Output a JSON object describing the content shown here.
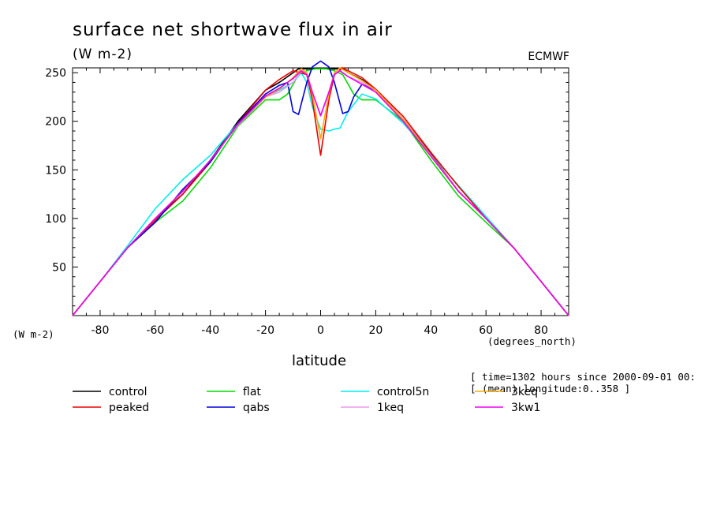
{
  "chart_data": {
    "type": "line",
    "title": "surface net shortwave flux in air",
    "units_label": "(W m-2)",
    "source_label": "ECMWF",
    "ylabel": "(W m-2)",
    "xlabel": "latitude",
    "xunits_label": "(degrees_north)",
    "xlim": [
      -90,
      90
    ],
    "ylim": [
      0,
      255
    ],
    "xticks": [
      -80,
      -60,
      -40,
      -20,
      0,
      20,
      40,
      60,
      80
    ],
    "yticks": [
      50,
      100,
      150,
      200,
      250
    ],
    "info_lines": [
      "[ time=1302 hours since 2000-09-01 00:",
      "[ (mean) longitude:0..358 ]"
    ],
    "grid": false,
    "legend_position": "bottom",
    "series": [
      {
        "name": "control",
        "color": "#000000",
        "x": [
          -90,
          -80,
          -70,
          -60,
          -50,
          -40,
          -30,
          -20,
          -15,
          -10,
          -8,
          -5,
          -3,
          0,
          3,
          5,
          8,
          10,
          15,
          20,
          30,
          40,
          50,
          60,
          70,
          80,
          90
        ],
        "y": [
          0,
          35,
          70,
          100,
          125,
          160,
          200,
          232,
          240,
          250,
          254,
          254,
          254,
          254,
          254,
          254,
          254,
          250,
          243,
          232,
          202,
          166,
          128,
          100,
          70,
          35,
          0
        ]
      },
      {
        "name": "flat",
        "color": "#00dd00",
        "x": [
          -90,
          -80,
          -70,
          -60,
          -50,
          -40,
          -30,
          -20,
          -15,
          -12,
          -8,
          -5,
          -2,
          0,
          2,
          5,
          8,
          12,
          15,
          20,
          30,
          40,
          50,
          60,
          70,
          80,
          90
        ],
        "y": [
          0,
          35,
          70,
          96,
          118,
          152,
          195,
          222,
          222,
          228,
          248,
          252,
          254,
          254,
          254,
          252,
          248,
          228,
          222,
          222,
          200,
          160,
          123,
          96,
          70,
          35,
          0
        ]
      },
      {
        "name": "control5n",
        "color": "#00eeee",
        "x": [
          -90,
          -80,
          -70,
          -60,
          -50,
          -40,
          -30,
          -20,
          -15,
          -10,
          -7,
          -5,
          -3,
          0,
          3,
          5,
          7,
          10,
          15,
          20,
          30,
          40,
          50,
          60,
          70,
          80,
          90
        ],
        "y": [
          0,
          35,
          72,
          110,
          140,
          165,
          198,
          225,
          232,
          240,
          250,
          240,
          215,
          192,
          190,
          192,
          193,
          210,
          228,
          223,
          198,
          166,
          134,
          102,
          70,
          35,
          0
        ]
      },
      {
        "name": "peaked",
        "color": "#ee0000",
        "x": [
          -90,
          -80,
          -70,
          -60,
          -50,
          -40,
          -30,
          -20,
          -15,
          -10,
          -5,
          -3,
          0,
          3,
          5,
          8,
          10,
          15,
          20,
          30,
          40,
          50,
          60,
          70,
          80,
          90
        ],
        "y": [
          0,
          35,
          70,
          98,
          125,
          158,
          198,
          232,
          243,
          252,
          248,
          222,
          165,
          222,
          248,
          255,
          252,
          245,
          233,
          205,
          168,
          133,
          100,
          70,
          35,
          0
        ]
      },
      {
        "name": "qabs",
        "color": "#0000dd",
        "x": [
          -90,
          -80,
          -70,
          -60,
          -50,
          -40,
          -30,
          -20,
          -15,
          -12,
          -10,
          -8,
          -5,
          -3,
          0,
          3,
          5,
          8,
          10,
          12,
          15,
          20,
          30,
          40,
          50,
          60,
          70,
          80,
          90
        ],
        "y": [
          0,
          35,
          70,
          96,
          130,
          158,
          198,
          228,
          237,
          240,
          210,
          207,
          240,
          256,
          262,
          256,
          240,
          208,
          210,
          225,
          238,
          232,
          202,
          166,
          128,
          100,
          70,
          35,
          0
        ]
      },
      {
        "name": "1keq",
        "color": "#ee99ee",
        "x": [
          -90,
          -80,
          -70,
          -60,
          -50,
          -40,
          -30,
          -20,
          -15,
          -10,
          -7,
          -5,
          -3,
          0,
          3,
          5,
          7,
          10,
          15,
          20,
          30,
          40,
          50,
          60,
          70,
          80,
          90
        ],
        "y": [
          0,
          35,
          70,
          100,
          128,
          160,
          196,
          225,
          230,
          240,
          252,
          250,
          230,
          205,
          230,
          250,
          252,
          246,
          240,
          232,
          202,
          165,
          128,
          100,
          70,
          35,
          0
        ]
      },
      {
        "name": "3keq",
        "color": "#ffaa00",
        "x": [
          -90,
          -80,
          -70,
          -60,
          -50,
          -40,
          -30,
          -20,
          -15,
          -10,
          -7,
          -5,
          -3,
          0,
          3,
          5,
          7,
          10,
          15,
          20,
          30,
          40,
          50,
          60,
          70,
          80,
          90
        ],
        "y": [
          0,
          35,
          70,
          100,
          128,
          160,
          197,
          225,
          233,
          245,
          254,
          250,
          228,
          182,
          228,
          250,
          255,
          250,
          242,
          232,
          202,
          165,
          128,
          100,
          70,
          35,
          0
        ]
      },
      {
        "name": "3kw1",
        "color": "#ee00ee",
        "x": [
          -90,
          -80,
          -70,
          -60,
          -50,
          -40,
          -30,
          -20,
          -15,
          -10,
          -7,
          -5,
          -3,
          0,
          3,
          5,
          7,
          10,
          15,
          20,
          30,
          40,
          50,
          60,
          70,
          80,
          90
        ],
        "y": [
          0,
          35,
          70,
          100,
          128,
          160,
          197,
          226,
          234,
          244,
          252,
          248,
          230,
          206,
          230,
          248,
          252,
          246,
          238,
          230,
          200,
          164,
          128,
          100,
          70,
          35,
          0
        ]
      }
    ],
    "legend": [
      {
        "label": "control",
        "color": "#000000"
      },
      {
        "label": "flat",
        "color": "#00dd00"
      },
      {
        "label": "control5n",
        "color": "#00eeee"
      },
      {
        "label": "3keq",
        "color": "#ffaa00"
      },
      {
        "label": "peaked",
        "color": "#ee0000"
      },
      {
        "label": "qabs",
        "color": "#0000dd"
      },
      {
        "label": "1keq",
        "color": "#ee99ee"
      },
      {
        "label": "3kw1",
        "color": "#ee00ee"
      }
    ]
  }
}
